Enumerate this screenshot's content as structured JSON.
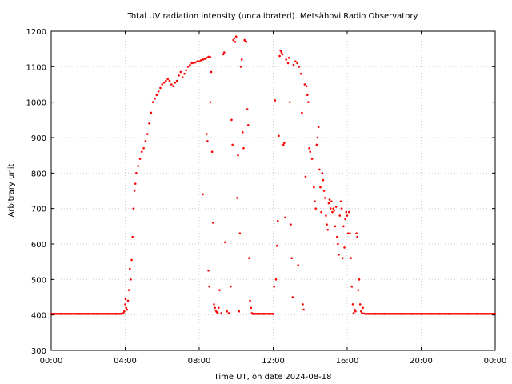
{
  "chart_data": {
    "type": "scatter",
    "title": "Total UV radiation intensity (uncalibrated). Metsähovi Radio Observatory",
    "xlabel": "Time UT, on date 2024-08-18",
    "ylabel": "Arbitrary unit",
    "xlim": [
      0,
      24
    ],
    "ylim": [
      300,
      1200
    ],
    "x_ticks": [
      {
        "value": 0,
        "label": "00:00"
      },
      {
        "value": 4,
        "label": "04:00"
      },
      {
        "value": 8,
        "label": "08:00"
      },
      {
        "value": 12,
        "label": "12:00"
      },
      {
        "value": 16,
        "label": "16:00"
      },
      {
        "value": 20,
        "label": "20:00"
      },
      {
        "value": 24,
        "label": "00:00"
      }
    ],
    "y_ticks": [
      {
        "value": 300,
        "label": "300"
      },
      {
        "value": 400,
        "label": "400"
      },
      {
        "value": 500,
        "label": "500"
      },
      {
        "value": 600,
        "label": "600"
      },
      {
        "value": 700,
        "label": "700"
      },
      {
        "value": 800,
        "label": "800"
      },
      {
        "value": 900,
        "label": "900"
      },
      {
        "value": 1000,
        "label": "1000"
      },
      {
        "value": 1100,
        "label": "1100"
      },
      {
        "value": 1200,
        "label": "1200"
      }
    ],
    "grid": true,
    "color": "#ff0000",
    "series": [
      {
        "x_unit": "hours UT",
        "points": [
          [
            0.0,
            403
          ],
          [
            0.5,
            403
          ],
          [
            1.0,
            403
          ],
          [
            1.5,
            403
          ],
          [
            2.0,
            403
          ],
          [
            2.5,
            403
          ],
          [
            3.0,
            403
          ],
          [
            3.5,
            403
          ],
          [
            3.8,
            403
          ],
          [
            3.9,
            405
          ],
          [
            3.95,
            410
          ],
          [
            4.0,
            430
          ],
          [
            4.02,
            445
          ],
          [
            4.05,
            420
          ],
          [
            4.1,
            415
          ],
          [
            4.15,
            440
          ],
          [
            4.2,
            470
          ],
          [
            4.25,
            530
          ],
          [
            4.3,
            500
          ],
          [
            4.35,
            555
          ],
          [
            4.4,
            620
          ],
          [
            4.45,
            700
          ],
          [
            4.5,
            750
          ],
          [
            4.55,
            770
          ],
          [
            4.6,
            800
          ],
          [
            4.7,
            820
          ],
          [
            4.8,
            840
          ],
          [
            4.9,
            860
          ],
          [
            5.0,
            870
          ],
          [
            5.1,
            890
          ],
          [
            5.2,
            910
          ],
          [
            5.3,
            940
          ],
          [
            5.4,
            970
          ],
          [
            5.5,
            1000
          ],
          [
            5.6,
            1010
          ],
          [
            5.7,
            1020
          ],
          [
            5.8,
            1030
          ],
          [
            5.9,
            1040
          ],
          [
            6.0,
            1050
          ],
          [
            6.1,
            1055
          ],
          [
            6.2,
            1060
          ],
          [
            6.3,
            1065
          ],
          [
            6.4,
            1060
          ],
          [
            6.5,
            1050
          ],
          [
            6.6,
            1045
          ],
          [
            6.7,
            1055
          ],
          [
            6.8,
            1060
          ],
          [
            6.9,
            1075
          ],
          [
            7.0,
            1085
          ],
          [
            7.1,
            1070
          ],
          [
            7.2,
            1080
          ],
          [
            7.3,
            1090
          ],
          [
            7.4,
            1100
          ],
          [
            7.5,
            1105
          ],
          [
            7.6,
            1110
          ],
          [
            7.7,
            1110
          ],
          [
            7.8,
            1112
          ],
          [
            7.9,
            1115
          ],
          [
            8.0,
            1115
          ],
          [
            8.1,
            1118
          ],
          [
            8.2,
            1120
          ],
          [
            8.3,
            1122
          ],
          [
            8.4,
            1125
          ],
          [
            8.5,
            1128
          ],
          [
            8.6,
            1127
          ],
          [
            8.2,
            740
          ],
          [
            8.4,
            910
          ],
          [
            8.45,
            890
          ],
          [
            8.5,
            525
          ],
          [
            8.55,
            480
          ],
          [
            8.6,
            1000
          ],
          [
            8.65,
            1085
          ],
          [
            8.7,
            860
          ],
          [
            8.75,
            660
          ],
          [
            8.8,
            430
          ],
          [
            8.85,
            420
          ],
          [
            8.9,
            412
          ],
          [
            8.95,
            408
          ],
          [
            9.0,
            405
          ],
          [
            9.05,
            420
          ],
          [
            9.1,
            470
          ],
          [
            9.2,
            405
          ],
          [
            9.3,
            1135
          ],
          [
            9.35,
            1140
          ],
          [
            9.4,
            605
          ],
          [
            9.5,
            410
          ],
          [
            9.6,
            405
          ],
          [
            9.7,
            480
          ],
          [
            9.75,
            950
          ],
          [
            9.8,
            880
          ],
          [
            9.85,
            1175
          ],
          [
            9.9,
            1180
          ],
          [
            9.95,
            1170
          ],
          [
            10.0,
            1185
          ],
          [
            10.05,
            730
          ],
          [
            10.1,
            850
          ],
          [
            10.15,
            410
          ],
          [
            10.2,
            630
          ],
          [
            10.25,
            1100
          ],
          [
            10.3,
            1120
          ],
          [
            10.35,
            915
          ],
          [
            10.4,
            870
          ],
          [
            10.45,
            1175
          ],
          [
            10.5,
            1172
          ],
          [
            10.55,
            1170
          ],
          [
            10.6,
            980
          ],
          [
            10.65,
            935
          ],
          [
            10.7,
            560
          ],
          [
            10.75,
            440
          ],
          [
            10.8,
            420
          ],
          [
            10.85,
            405
          ],
          [
            10.9,
            403
          ],
          [
            11.0,
            403
          ],
          [
            11.2,
            403
          ],
          [
            11.5,
            403
          ],
          [
            11.8,
            403
          ],
          [
            12.0,
            403
          ],
          [
            12.05,
            480
          ],
          [
            12.1,
            1005
          ],
          [
            12.15,
            500
          ],
          [
            12.2,
            595
          ],
          [
            12.25,
            665
          ],
          [
            12.3,
            905
          ],
          [
            12.35,
            1130
          ],
          [
            12.4,
            1145
          ],
          [
            12.45,
            1140
          ],
          [
            12.5,
            1135
          ],
          [
            12.55,
            880
          ],
          [
            12.6,
            885
          ],
          [
            12.65,
            675
          ],
          [
            12.7,
            1120
          ],
          [
            12.8,
            1110
          ],
          [
            12.85,
            1125
          ],
          [
            12.9,
            1000
          ],
          [
            12.95,
            655
          ],
          [
            13.0,
            560
          ],
          [
            13.05,
            450
          ],
          [
            13.1,
            1105
          ],
          [
            13.2,
            1115
          ],
          [
            13.3,
            1110
          ],
          [
            13.35,
            540
          ],
          [
            13.4,
            1100
          ],
          [
            13.5,
            1080
          ],
          [
            13.55,
            970
          ],
          [
            13.6,
            430
          ],
          [
            13.65,
            415
          ],
          [
            13.7,
            1050
          ],
          [
            13.75,
            790
          ],
          [
            13.8,
            1045
          ],
          [
            13.85,
            1020
          ],
          [
            13.9,
            1000
          ],
          [
            13.95,
            870
          ],
          [
            14.0,
            860
          ],
          [
            14.1,
            840
          ],
          [
            14.2,
            760
          ],
          [
            14.25,
            720
          ],
          [
            14.3,
            700
          ],
          [
            14.35,
            880
          ],
          [
            14.4,
            900
          ],
          [
            14.45,
            930
          ],
          [
            14.5,
            810
          ],
          [
            14.55,
            760
          ],
          [
            14.6,
            690
          ],
          [
            14.65,
            800
          ],
          [
            14.7,
            780
          ],
          [
            14.75,
            750
          ],
          [
            14.8,
            730
          ],
          [
            14.85,
            680
          ],
          [
            14.9,
            655
          ],
          [
            14.95,
            640
          ],
          [
            15.0,
            715
          ],
          [
            15.05,
            725
          ],
          [
            15.1,
            700
          ],
          [
            15.15,
            720
          ],
          [
            15.2,
            690
          ],
          [
            15.25,
            700
          ],
          [
            15.3,
            695
          ],
          [
            15.35,
            650
          ],
          [
            15.4,
            705
          ],
          [
            15.45,
            620
          ],
          [
            15.5,
            600
          ],
          [
            15.55,
            570
          ],
          [
            15.6,
            680
          ],
          [
            15.65,
            720
          ],
          [
            15.7,
            700
          ],
          [
            15.75,
            560
          ],
          [
            15.8,
            650
          ],
          [
            15.85,
            590
          ],
          [
            15.9,
            670
          ],
          [
            15.95,
            690
          ],
          [
            16.0,
            680
          ],
          [
            16.05,
            630
          ],
          [
            16.1,
            690
          ],
          [
            16.15,
            630
          ],
          [
            16.2,
            560
          ],
          [
            16.25,
            480
          ],
          [
            16.3,
            430
          ],
          [
            16.35,
            405
          ],
          [
            16.4,
            415
          ],
          [
            16.45,
            410
          ],
          [
            16.5,
            630
          ],
          [
            16.55,
            620
          ],
          [
            16.6,
            470
          ],
          [
            16.65,
            500
          ],
          [
            16.7,
            430
          ],
          [
            16.75,
            410
          ],
          [
            16.8,
            405
          ],
          [
            16.85,
            420
          ],
          [
            16.9,
            404
          ],
          [
            17.0,
            403
          ],
          [
            17.5,
            403
          ],
          [
            18.0,
            403
          ],
          [
            18.5,
            403
          ],
          [
            19.0,
            403
          ],
          [
            19.5,
            403
          ],
          [
            20.0,
            403
          ],
          [
            20.5,
            403
          ],
          [
            21.0,
            403
          ],
          [
            21.5,
            403
          ],
          [
            22.0,
            403
          ],
          [
            22.5,
            403
          ],
          [
            23.0,
            403
          ],
          [
            23.5,
            403
          ],
          [
            24.0,
            403
          ]
        ]
      }
    ]
  }
}
